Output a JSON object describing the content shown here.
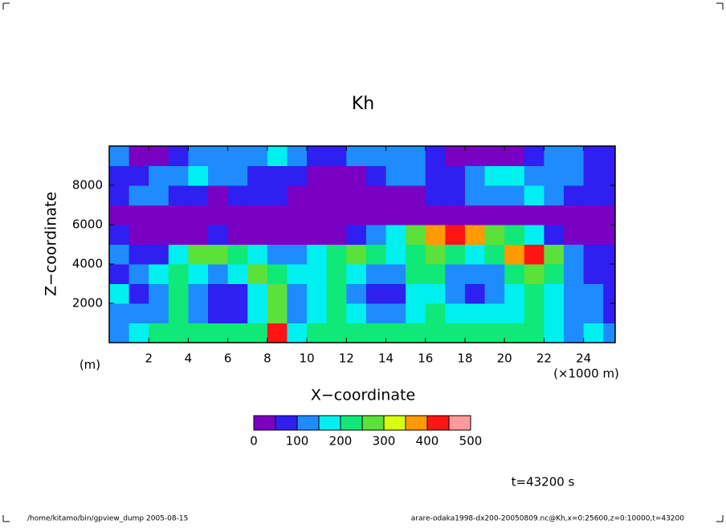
{
  "chart_data": {
    "type": "contour",
    "title": "Kh",
    "x_label": "X−coordinate",
    "y_label": "Z−coordinate",
    "x_unit": "(×1000 m)",
    "y_unit": "(m)",
    "time_label": "t=43200 s",
    "footer_left": "/home/kitamo/bin/gpview_dump  2005-08-15",
    "footer_right": "arare-odaka1998-dx200-20050809.nc@Kh,x=0:25600,z=0:10000,t=43200",
    "xlim": [
      0,
      25.6
    ],
    "ylim": [
      0,
      10000
    ],
    "xticks": [
      2,
      4,
      6,
      8,
      10,
      12,
      14,
      16,
      18,
      20,
      22,
      24
    ],
    "yticks": [
      2000,
      4000,
      6000,
      8000
    ],
    "x": [
      0.5,
      1.5,
      2.5,
      3.5,
      4.5,
      5.5,
      6.5,
      7.5,
      8.5,
      9.5,
      10.5,
      11.5,
      12.5,
      13.5,
      14.5,
      15.5,
      16.5,
      17.5,
      18.5,
      19.5,
      20.5,
      21.5,
      22.5,
      23.5,
      24.5,
      25.5
    ],
    "z": [
      500,
      1500,
      2500,
      3500,
      4500,
      5500,
      6500,
      7500,
      8500,
      9500
    ],
    "values": [
      [
        125,
        175,
        225,
        225,
        225,
        225,
        225,
        225,
        425,
        175,
        225,
        225,
        225,
        225,
        225,
        225,
        225,
        225,
        225,
        225,
        225,
        225,
        175,
        125,
        175,
        125
      ],
      [
        125,
        125,
        125,
        225,
        125,
        75,
        75,
        175,
        275,
        125,
        175,
        225,
        175,
        125,
        125,
        175,
        225,
        175,
        175,
        175,
        175,
        225,
        175,
        125,
        125,
        75
      ],
      [
        175,
        75,
        125,
        225,
        125,
        75,
        75,
        175,
        275,
        125,
        175,
        225,
        125,
        75,
        75,
        175,
        175,
        125,
        75,
        125,
        175,
        225,
        175,
        125,
        125,
        75
      ],
      [
        75,
        125,
        175,
        225,
        175,
        125,
        175,
        275,
        225,
        175,
        175,
        225,
        175,
        125,
        125,
        225,
        225,
        125,
        125,
        125,
        225,
        275,
        225,
        125,
        75,
        75
      ],
      [
        125,
        75,
        75,
        175,
        275,
        275,
        225,
        175,
        125,
        125,
        175,
        225,
        275,
        225,
        175,
        225,
        275,
        225,
        175,
        225,
        375,
        425,
        275,
        125,
        75,
        75
      ],
      [
        75,
        25,
        25,
        25,
        25,
        75,
        25,
        25,
        25,
        25,
        25,
        25,
        75,
        125,
        175,
        275,
        375,
        425,
        375,
        275,
        225,
        175,
        75,
        25,
        25,
        25
      ],
      [
        25,
        25,
        25,
        25,
        25,
        25,
        25,
        25,
        25,
        25,
        25,
        25,
        25,
        25,
        25,
        25,
        25,
        25,
        25,
        25,
        25,
        25,
        25,
        25,
        25,
        25
      ],
      [
        75,
        125,
        125,
        75,
        75,
        25,
        75,
        75,
        75,
        25,
        25,
        25,
        25,
        25,
        25,
        25,
        75,
        75,
        125,
        125,
        125,
        175,
        125,
        75,
        75,
        75
      ],
      [
        75,
        75,
        125,
        125,
        175,
        125,
        125,
        75,
        75,
        75,
        25,
        25,
        25,
        75,
        125,
        125,
        75,
        75,
        125,
        175,
        175,
        125,
        125,
        125,
        75,
        75
      ],
      [
        125,
        25,
        25,
        75,
        125,
        125,
        125,
        125,
        175,
        125,
        75,
        75,
        125,
        125,
        125,
        125,
        75,
        25,
        25,
        25,
        25,
        75,
        125,
        125,
        75,
        75
      ]
    ],
    "levels": [
      0,
      50,
      100,
      150,
      200,
      250,
      300,
      350,
      400,
      450,
      500
    ],
    "colors": [
      "#7a00c4",
      "#2f1ff0",
      "#1e8cff",
      "#00f0f0",
      "#10e878",
      "#5ce03a",
      "#d8ff10",
      "#ff9a00",
      "#ff1414",
      "#ff9a9a"
    ],
    "colorbar_ticks": [
      0,
      100,
      200,
      300,
      400,
      500
    ]
  }
}
